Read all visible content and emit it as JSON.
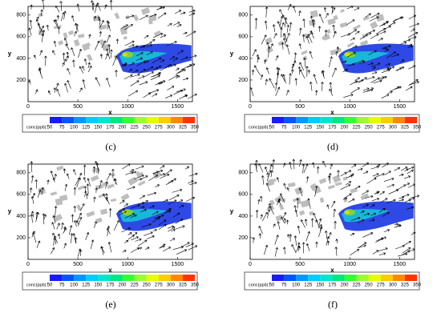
{
  "chart_data": [
    {
      "type": "vector-field",
      "label": "(c)",
      "x_label": "x",
      "y_label": "y",
      "xlim": [
        0,
        1650
      ],
      "ylim": [
        0,
        880
      ],
      "xticks": [
        0,
        500,
        1000,
        1500
      ],
      "yticks": [
        200,
        400,
        600,
        800
      ],
      "colorbar": {
        "label": "conc(ppb):",
        "ticks": [
          50,
          75,
          100,
          125,
          150,
          175,
          200,
          225,
          250,
          275,
          300,
          325,
          350
        ],
        "colors": [
          "#1a1aff",
          "#0055ff",
          "#0099ff",
          "#00ccff",
          "#00e6cc",
          "#00e680",
          "#33ff33",
          "#99ff33",
          "#e6ff00",
          "#ffcc00",
          "#ff8800",
          "#ff3300"
        ]
      }
    },
    {
      "type": "vector-field",
      "label": "(d)",
      "x_label": "x",
      "y_label": "y",
      "xlim": [
        0,
        1650
      ],
      "ylim": [
        0,
        880
      ],
      "xticks": [
        0,
        500,
        1000,
        1500
      ],
      "yticks": [
        200,
        400,
        600,
        800
      ],
      "colorbar": {
        "label": "conc(ppb):",
        "ticks": [
          50,
          75,
          100,
          125,
          150,
          175,
          200,
          225,
          250,
          275,
          300,
          325,
          350
        ],
        "colors": [
          "#1a1aff",
          "#0055ff",
          "#0099ff",
          "#00ccff",
          "#00e6cc",
          "#00e680",
          "#33ff33",
          "#99ff33",
          "#e6ff00",
          "#ffcc00",
          "#ff8800",
          "#ff3300"
        ]
      }
    },
    {
      "type": "vector-field",
      "label": "(e)",
      "x_label": "x",
      "y_label": "y",
      "xlim": [
        0,
        1650
      ],
      "ylim": [
        0,
        880
      ],
      "xticks": [
        0,
        500,
        1000,
        1500
      ],
      "yticks": [
        200,
        400,
        600,
        800
      ],
      "colorbar": {
        "label": "conc(ppb):",
        "ticks": [
          50,
          75,
          100,
          125,
          150,
          175,
          200,
          225,
          250,
          275,
          300,
          325,
          350
        ],
        "colors": [
          "#1a1aff",
          "#0055ff",
          "#0099ff",
          "#00ccff",
          "#00e6cc",
          "#00e680",
          "#33ff33",
          "#99ff33",
          "#e6ff00",
          "#ffcc00",
          "#ff8800",
          "#ff3300"
        ]
      }
    },
    {
      "type": "vector-field",
      "label": "(f)",
      "x_label": "x",
      "y_label": "y",
      "xlim": [
        0,
        1650
      ],
      "ylim": [
        0,
        880
      ],
      "xticks": [
        0,
        500,
        1000,
        1500
      ],
      "yticks": [
        200,
        400,
        600,
        800
      ],
      "colorbar": {
        "label": "conc(ppb):",
        "ticks": [
          50,
          75,
          100,
          125,
          150,
          175,
          200,
          225,
          250,
          275,
          300,
          325,
          350
        ],
        "colors": [
          "#1a1aff",
          "#0055ff",
          "#0099ff",
          "#00ccff",
          "#00e6cc",
          "#00e680",
          "#33ff33",
          "#99ff33",
          "#e6ff00",
          "#ffcc00",
          "#ff8800",
          "#ff3300"
        ]
      }
    }
  ]
}
